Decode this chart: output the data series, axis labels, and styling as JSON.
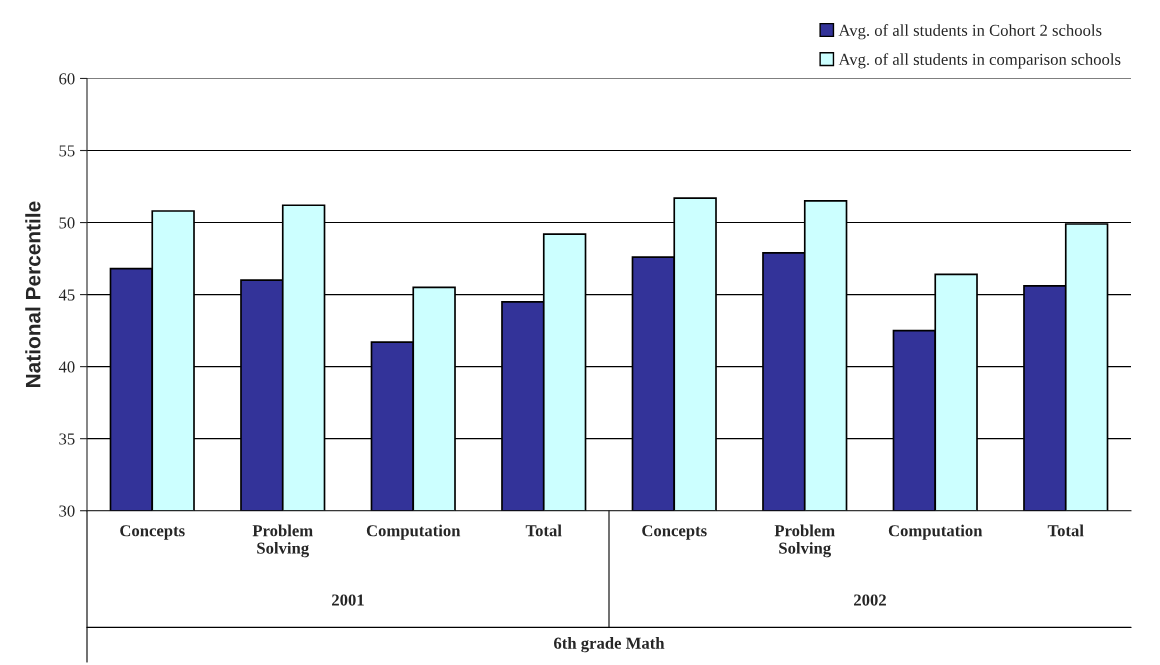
{
  "chart_data": {
    "type": "bar",
    "ylabel": "National Percentile",
    "xlabel": "6th grade Math",
    "categories": [
      "Concepts",
      "Problem\nSolving",
      "Computation",
      "Total",
      "Concepts",
      "Problem\nSolving",
      "Computation",
      "Total"
    ],
    "series": [
      {
        "name": "Avg. of all students in Cohort 2 schools",
        "color": "#333399",
        "values": [
          46.8,
          46.0,
          41.7,
          44.5,
          47.6,
          47.9,
          42.5,
          45.6
        ]
      },
      {
        "name": "Avg. of all students in comparison schools",
        "color": "#ccffff",
        "values": [
          50.8,
          51.2,
          45.5,
          49.2,
          51.7,
          51.5,
          46.4,
          49.9
        ]
      }
    ],
    "annotations": [
      "2001",
      "2002"
    ],
    "ylim": [
      30,
      60
    ],
    "yticks": [
      30,
      35,
      40,
      45,
      50,
      55,
      60
    ],
    "grid": "y",
    "legend": "top right"
  }
}
